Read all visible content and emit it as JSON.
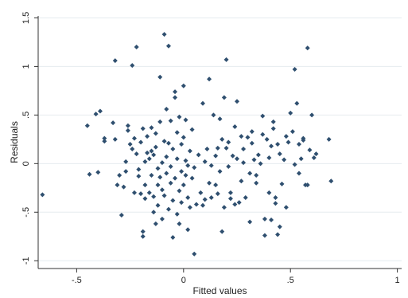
{
  "chart_data": {
    "type": "scatter",
    "title": "",
    "xlabel": "Fitted values",
    "ylabel": "Residuals",
    "xlim": [
      -0.68,
      1.02
    ],
    "ylim": [
      -1.08,
      1.52
    ],
    "x_ticks": [
      -0.5,
      0,
      0.5,
      1
    ],
    "x_tick_labels": [
      "-.5",
      "0",
      ".5",
      "1"
    ],
    "y_ticks": [
      -1,
      -0.5,
      0,
      0.5,
      1,
      1.5
    ],
    "y_tick_labels": [
      "-1",
      "-.5",
      "0",
      ".5",
      "1",
      "1.5"
    ],
    "grid": true,
    "legend": "none",
    "marker_color": "#2f4f6f",
    "series": [
      {
        "values": [
          [
            -0.66,
            -0.32
          ],
          [
            -0.45,
            0.39
          ],
          [
            -0.44,
            -0.11
          ],
          [
            -0.41,
            0.51
          ],
          [
            -0.4,
            -0.09
          ],
          [
            -0.39,
            0.54
          ],
          [
            -0.37,
            0.26
          ],
          [
            -0.37,
            0.23
          ],
          [
            -0.33,
            0.42
          ],
          [
            -0.32,
            1.06
          ],
          [
            -0.32,
            0.25
          ],
          [
            -0.31,
            -0.22
          ],
          [
            -0.3,
            -0.12
          ],
          [
            -0.29,
            -0.53
          ],
          [
            -0.28,
            -0.24
          ],
          [
            -0.27,
            0.02
          ],
          [
            -0.27,
            -0.08
          ],
          [
            -0.26,
            0.39
          ],
          [
            -0.26,
            0.34
          ],
          [
            -0.25,
            0.2
          ],
          [
            -0.24,
            0.15
          ],
          [
            -0.24,
            1.01
          ],
          [
            -0.23,
            -0.3
          ],
          [
            -0.23,
            0.26
          ],
          [
            -0.22,
            1.2
          ],
          [
            -0.22,
            0.1
          ],
          [
            -0.21,
            -0.06
          ],
          [
            -0.21,
            -0.13
          ],
          [
            -0.2,
            0.22
          ],
          [
            -0.2,
            -0.31
          ],
          [
            -0.19,
            -0.7
          ],
          [
            -0.19,
            -0.75
          ],
          [
            -0.19,
            0.36
          ],
          [
            -0.18,
            -0.22
          ],
          [
            -0.18,
            0.02
          ],
          [
            -0.18,
            -0.36
          ],
          [
            -0.17,
            0.11
          ],
          [
            -0.17,
            0.28
          ],
          [
            -0.16,
            -0.3
          ],
          [
            -0.16,
            0.05
          ],
          [
            -0.15,
            0.37
          ],
          [
            -0.15,
            -0.12
          ],
          [
            -0.15,
            0.13
          ],
          [
            -0.14,
            -0.5
          ],
          [
            -0.14,
            0.09
          ],
          [
            -0.14,
            -0.34
          ],
          [
            -0.13,
            0.17
          ],
          [
            -0.13,
            -0.62
          ],
          [
            -0.13,
            0.31
          ],
          [
            -0.12,
            -0.05
          ],
          [
            -0.12,
            -0.22
          ],
          [
            -0.12,
            -0.43
          ],
          [
            -0.11,
            0.89
          ],
          [
            -0.11,
            0.43
          ],
          [
            -0.11,
            -0.14
          ],
          [
            -0.1,
            0.01
          ],
          [
            -0.1,
            -0.27
          ],
          [
            -0.1,
            -0.57
          ],
          [
            -0.09,
            0.23
          ],
          [
            -0.09,
            -0.33
          ],
          [
            -0.09,
            1.33
          ],
          [
            -0.08,
            0.07
          ],
          [
            -0.08,
            -0.1
          ],
          [
            -0.08,
            0.56
          ],
          [
            -0.07,
            -0.47
          ],
          [
            -0.07,
            0.21
          ],
          [
            -0.07,
            1.21
          ],
          [
            -0.06,
            -0.2
          ],
          [
            -0.06,
            0.44
          ],
          [
            -0.06,
            -0.03
          ],
          [
            -0.05,
            -0.76
          ],
          [
            -0.05,
            0.15
          ],
          [
            -0.05,
            -0.38
          ],
          [
            -0.04,
            0.68
          ],
          [
            -0.04,
            0.74
          ],
          [
            -0.04,
            -0.15
          ],
          [
            -0.03,
            0.32
          ],
          [
            -0.03,
            0.05
          ],
          [
            -0.03,
            -0.52
          ],
          [
            -0.02,
            -0.28
          ],
          [
            -0.02,
            0.48
          ],
          [
            -0.02,
            -0.62
          ],
          [
            -0.01,
            -0.08
          ],
          [
            -0.01,
            0.2
          ],
          [
            -0.01,
            -0.4
          ],
          [
            0.0,
            0.27
          ],
          [
            0.0,
            -0.22
          ],
          [
            0.0,
            0.8
          ],
          [
            0.01,
            0.03
          ],
          [
            0.01,
            -0.12
          ],
          [
            0.01,
            0.45
          ],
          [
            0.02,
            -0.02
          ],
          [
            0.02,
            -0.35
          ],
          [
            0.02,
            -0.68
          ],
          [
            0.03,
            0.13
          ],
          [
            0.03,
            -0.45
          ],
          [
            0.04,
            -0.15
          ],
          [
            0.04,
            0.35
          ],
          [
            0.05,
            -0.93
          ],
          [
            0.05,
            -0.04
          ],
          [
            0.06,
            -0.42
          ],
          [
            0.07,
            0.09
          ],
          [
            0.08,
            -0.3
          ],
          [
            0.09,
            0.62
          ],
          [
            0.09,
            -0.43
          ],
          [
            0.1,
            -0.37
          ],
          [
            0.1,
            0.02
          ],
          [
            0.11,
            0.15
          ],
          [
            0.12,
            0.87
          ],
          [
            0.12,
            -0.2
          ],
          [
            0.13,
            -0.35
          ],
          [
            0.13,
            -0.02
          ],
          [
            0.14,
            0.5
          ],
          [
            0.15,
            -0.22
          ],
          [
            0.15,
            0.08
          ],
          [
            0.16,
            -0.31
          ],
          [
            0.16,
            0.16
          ],
          [
            0.17,
            0.46
          ],
          [
            0.17,
            -0.08
          ],
          [
            0.18,
            0.25
          ],
          [
            0.18,
            -0.7
          ],
          [
            0.19,
            0.68
          ],
          [
            0.19,
            -0.45
          ],
          [
            0.2,
            1.07
          ],
          [
            0.2,
            0.16
          ],
          [
            0.21,
            0.22
          ],
          [
            0.21,
            -0.03
          ],
          [
            0.22,
            -0.3
          ],
          [
            0.22,
            -0.36
          ],
          [
            0.23,
            0.08
          ],
          [
            0.24,
            0.38
          ],
          [
            0.24,
            -0.42
          ],
          [
            0.25,
            0.05
          ],
          [
            0.25,
            0.64
          ],
          [
            0.26,
            -0.4
          ],
          [
            0.27,
            0.28
          ],
          [
            0.27,
            -0.18
          ],
          [
            0.28,
            0.01
          ],
          [
            0.28,
            0.15
          ],
          [
            0.29,
            -0.35
          ],
          [
            0.3,
            0.27
          ],
          [
            0.31,
            -0.1
          ],
          [
            0.31,
            -0.6
          ],
          [
            0.32,
            0.33
          ],
          [
            0.32,
            0.21
          ],
          [
            0.33,
            0.04
          ],
          [
            0.34,
            -0.12
          ],
          [
            0.34,
            -0.2
          ],
          [
            0.35,
            0.09
          ],
          [
            0.36,
            0.0
          ],
          [
            0.37,
            0.3
          ],
          [
            0.37,
            0.49
          ],
          [
            0.38,
            -0.57
          ],
          [
            0.38,
            -0.74
          ],
          [
            0.39,
            0.25
          ],
          [
            0.4,
            0.06
          ],
          [
            0.4,
            -0.3
          ],
          [
            0.41,
            0.18
          ],
          [
            0.41,
            -0.58
          ],
          [
            0.42,
            0.43
          ],
          [
            0.42,
            0.36
          ],
          [
            0.43,
            -0.35
          ],
          [
            0.43,
            -0.41
          ],
          [
            0.44,
            0.2
          ],
          [
            0.44,
            -0.73
          ],
          [
            0.45,
            -0.65
          ],
          [
            0.45,
            0.1
          ],
          [
            0.46,
            -0.21
          ],
          [
            0.47,
            0.04
          ],
          [
            0.48,
            0.28
          ],
          [
            0.48,
            -0.45
          ],
          [
            0.49,
            0.22
          ],
          [
            0.5,
            0.52
          ],
          [
            0.51,
            0.33
          ],
          [
            0.52,
            0.97
          ],
          [
            0.52,
            -0.01
          ],
          [
            0.53,
            0.62
          ],
          [
            0.54,
            -0.1
          ],
          [
            0.54,
            0.2
          ],
          [
            0.55,
            0.05
          ],
          [
            0.56,
            0.26
          ],
          [
            0.56,
            0.24
          ],
          [
            0.57,
            -0.22
          ],
          [
            0.58,
            1.19
          ],
          [
            0.58,
            -0.22
          ],
          [
            0.59,
            0.14
          ],
          [
            0.6,
            0.5
          ],
          [
            0.61,
            0.06
          ],
          [
            0.62,
            0.1
          ],
          [
            0.68,
            0.25
          ],
          [
            0.69,
            -0.18
          ]
        ]
      }
    ]
  }
}
